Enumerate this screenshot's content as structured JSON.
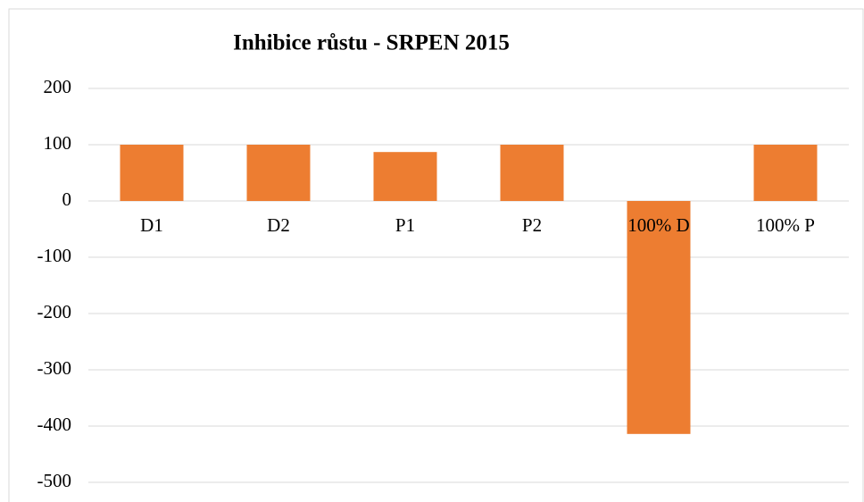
{
  "chart_data": {
    "type": "bar",
    "title": "Inhibice růstu - SRPEN 2015",
    "categories": [
      "D1",
      "D2",
      "P1",
      "P2",
      "100% D",
      "100% P"
    ],
    "values": [
      100,
      100,
      87,
      100,
      -414,
      100
    ],
    "color": "#ed7d31",
    "ylim": [
      -500,
      200
    ],
    "yticks": [
      -500,
      -400,
      -300,
      -200,
      -100,
      0,
      100,
      200
    ],
    "grid": true
  }
}
